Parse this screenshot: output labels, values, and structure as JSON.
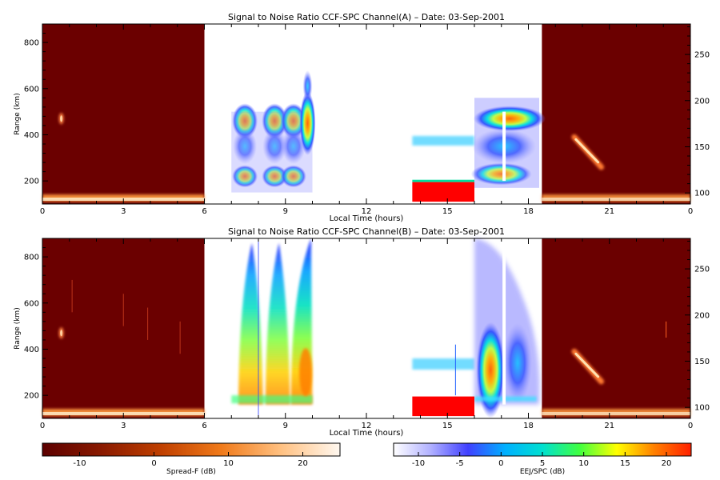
{
  "chart_data": [
    {
      "type": "heatmap",
      "title": "Signal to Noise Ratio CCF-SPC Channel(A) – Date: 03-Sep-2001",
      "xlabel": "Local Time (hours)",
      "ylabel": "Range (km)",
      "xticks": [
        "0",
        "3",
        "6",
        "9",
        "12",
        "15",
        "18",
        "21",
        "0"
      ],
      "yticks_left": [
        200,
        400,
        600,
        800
      ],
      "yticks_right": [
        100,
        150,
        200,
        250
      ],
      "ylim_left": [
        100,
        880
      ],
      "ylim_right": [
        88,
        283
      ],
      "xlim_hours": [
        0,
        24
      ],
      "panels": [
        {
          "name": "Spread-F",
          "x_start": 0,
          "x_end": 6
        },
        {
          "name": "EEJ/SPC",
          "x_start": 6,
          "x_end": 18.5
        },
        {
          "name": "Spread-F",
          "x_start": 18.5,
          "x_end": 24
        }
      ]
    },
    {
      "type": "heatmap",
      "title": "Signal to Noise Ratio CCF-SPC Channel(B) – Date: 03-Sep-2001",
      "xlabel": "Local Time (hours)",
      "ylabel": "Range (km)",
      "xticks": [
        "0",
        "3",
        "6",
        "9",
        "12",
        "15",
        "18",
        "21",
        "0"
      ],
      "yticks_left": [
        200,
        400,
        600,
        800
      ],
      "yticks_right": [
        100,
        150,
        200,
        250
      ],
      "ylim_left": [
        100,
        880
      ],
      "ylim_right": [
        88,
        283
      ],
      "xlim_hours": [
        0,
        24
      ],
      "panels": [
        {
          "name": "Spread-F",
          "x_start": 0,
          "x_end": 6
        },
        {
          "name": "EEJ/SPC",
          "x_start": 6,
          "x_end": 18.5
        },
        {
          "name": "Spread-F",
          "x_start": 18.5,
          "x_end": 24
        }
      ]
    }
  ],
  "colorbars": [
    {
      "label": "Spread-F (dB)",
      "ticks": [
        "-10",
        "0",
        "10",
        "20"
      ],
      "range": [
        -15,
        25
      ],
      "colors": [
        "#5c0000",
        "#8a1a00",
        "#c04000",
        "#f07a1a",
        "#ffc080",
        "#fff8f0"
      ]
    },
    {
      "label": "EEJ/SPC (dB)",
      "ticks": [
        "-10",
        "-5",
        "0",
        "5",
        "10",
        "15",
        "20"
      ],
      "range": [
        -13,
        23
      ],
      "colors": [
        "#ffffff",
        "#b0b0ff",
        "#4040ff",
        "#00b0ff",
        "#00e0d0",
        "#40ff40",
        "#ffff00",
        "#ff8000",
        "#ff2000"
      ]
    }
  ],
  "colors": {
    "spread_bg": "#6b0000",
    "echo_red": "#ff0000"
  }
}
